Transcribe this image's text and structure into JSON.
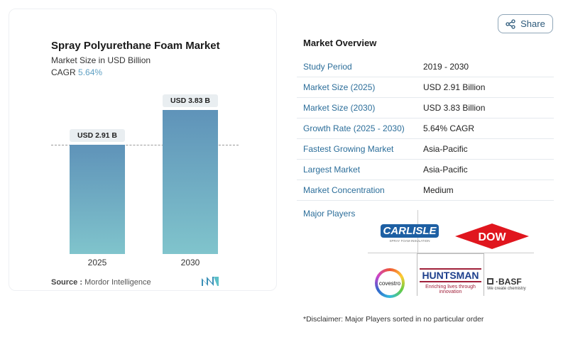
{
  "share": {
    "label": "Share",
    "icon": "share-icon"
  },
  "chart_card": {
    "title": "Spray Polyurethane Foam Market",
    "subtitle": "Market Size in USD Billion",
    "cagr_label": "CAGR",
    "cagr_value": "5.64%",
    "source_label": "Source :",
    "source_value": "Mordor Intelligence"
  },
  "chart_data": {
    "type": "bar",
    "title": "Spray Polyurethane Foam Market",
    "ylabel": "Market Size in USD Billion",
    "categories": [
      "2025",
      "2030"
    ],
    "values": [
      2.91,
      3.83
    ],
    "data_labels": [
      "USD 2.91 B",
      "USD 3.83 B"
    ],
    "ylim": [
      0,
      3.83
    ],
    "grid": false,
    "colors": [
      "#5f93b9",
      "#80c4cc"
    ]
  },
  "overview": {
    "title": "Market Overview",
    "rows": [
      {
        "label": "Study Period",
        "value": "2019 - 2030"
      },
      {
        "label": "Market Size (2025)",
        "value": "USD 2.91 Billion"
      },
      {
        "label": "Market Size (2030)",
        "value": "USD 3.83 Billion"
      },
      {
        "label": "Growth Rate (2025 - 2030)",
        "value": "5.64% CAGR"
      },
      {
        "label": "Fastest Growing Market",
        "value": "Asia-Pacific"
      },
      {
        "label": "Largest Market",
        "value": "Asia-Pacific"
      },
      {
        "label": "Market Concentration",
        "value": "Medium"
      }
    ],
    "major_players_label": "Major Players",
    "players": [
      "CARLISLE",
      "DOW",
      "covestro",
      "HUNTSMAN",
      "BASF"
    ],
    "player_taglines": {
      "carlisle": "SPRAY FOAM INSULATION",
      "huntsman": "Enriching lives through innovation",
      "basf": "We create chemistry"
    },
    "disclaimer": "*Disclaimer: Major Players sorted in no particular order"
  }
}
